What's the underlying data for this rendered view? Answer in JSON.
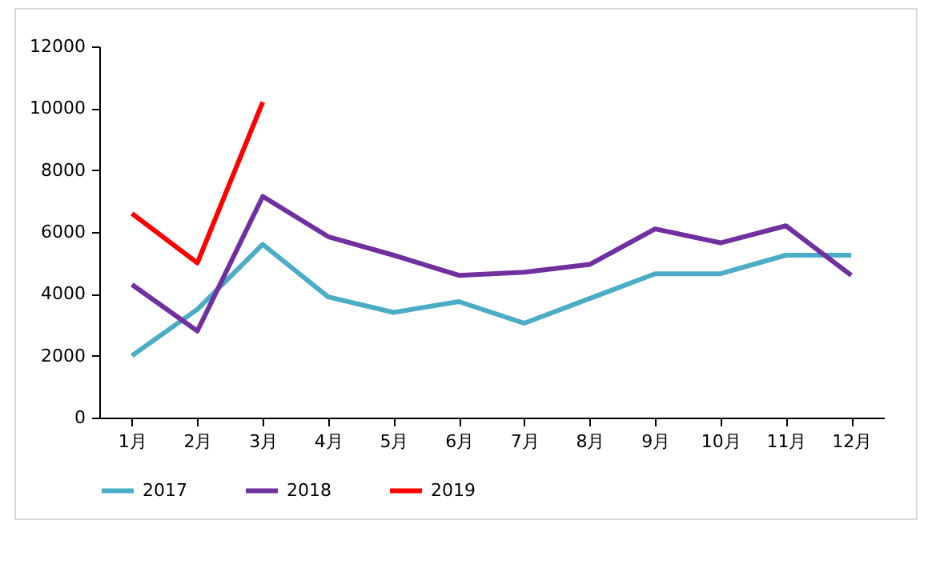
{
  "chart_data": {
    "type": "line",
    "categories": [
      "1月",
      "2月",
      "3月",
      "4月",
      "5月",
      "6月",
      "7月",
      "8月",
      "9月",
      "10月",
      "11月",
      "12月"
    ],
    "series": [
      {
        "name": "2017",
        "color": "#4bacc6",
        "values": [
          2000,
          3500,
          5600,
          3900,
          3400,
          3750,
          3050,
          3850,
          4650,
          4650,
          5250,
          5250
        ]
      },
      {
        "name": "2018",
        "color": "#7030a0",
        "values": [
          4300,
          2800,
          7150,
          5850,
          5250,
          4600,
          4700,
          4950,
          6100,
          5650,
          6200,
          4600
        ]
      },
      {
        "name": "2019",
        "color": "#ff0000",
        "values": [
          6600,
          5000,
          10200,
          null,
          null,
          null,
          null,
          null,
          null,
          null,
          null,
          null
        ]
      }
    ],
    "ylim": [
      0,
      12000
    ],
    "yticks": [
      0,
      2000,
      4000,
      6000,
      8000,
      10000,
      12000
    ],
    "grid": false,
    "legend": "bottom",
    "marker": "none",
    "line_style": "solid"
  }
}
